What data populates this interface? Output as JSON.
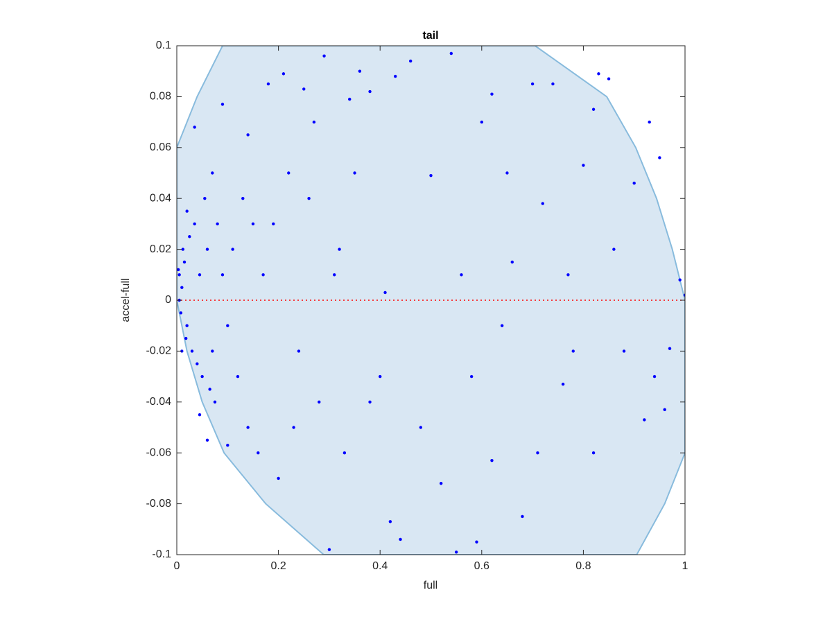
{
  "chart_data": {
    "type": "scatter",
    "title": "tail",
    "xlabel": "full",
    "ylabel": "accel-full",
    "color": "#0000ff",
    "x": [
      0.005,
      0.01,
      0.008,
      0.015,
      0.02,
      0.005,
      0.012,
      0.018,
      0.025,
      0.03,
      0.035,
      0.04,
      0.045,
      0.05,
      0.055,
      0.06,
      0.065,
      0.07,
      0.075,
      0.08,
      0.09,
      0.1,
      0.11,
      0.12,
      0.13,
      0.14,
      0.15,
      0.16,
      0.17,
      0.18,
      0.2,
      0.21,
      0.22,
      0.24,
      0.25,
      0.27,
      0.29,
      0.3,
      0.32,
      0.34,
      0.36,
      0.38,
      0.4,
      0.42,
      0.43,
      0.46,
      0.5,
      0.54,
      0.55,
      0.58,
      0.6,
      0.62,
      0.65,
      0.68,
      0.7,
      0.74,
      0.76,
      0.8,
      0.82,
      0.83,
      0.85,
      0.86,
      0.9,
      0.92,
      0.93,
      0.95,
      0.97,
      0.99,
      1.0,
      0.96,
      0.94,
      0.88,
      0.82,
      0.78,
      0.72,
      0.66,
      0.62,
      0.56,
      0.52,
      0.48,
      0.44,
      0.41,
      0.38,
      0.35,
      0.33,
      0.31,
      0.28,
      0.26,
      0.23,
      0.19,
      0.14,
      0.09,
      0.035,
      0.06,
      0.1,
      0.02,
      0.01,
      0.003,
      0.045,
      0.07,
      0.59,
      0.71,
      0.77,
      0.64
    ],
    "values": [
      0.01,
      0.005,
      -0.005,
      0.015,
      -0.01,
      0.0,
      0.02,
      -0.015,
      0.025,
      -0.02,
      0.03,
      -0.025,
      0.01,
      -0.03,
      0.04,
      0.02,
      -0.035,
      0.05,
      -0.04,
      0.03,
      0.01,
      -0.01,
      0.02,
      -0.03,
      0.04,
      -0.05,
      0.03,
      -0.06,
      0.01,
      0.085,
      -0.07,
      0.089,
      0.05,
      -0.02,
      0.083,
      0.07,
      0.096,
      -0.098,
      0.02,
      0.079,
      0.09,
      0.082,
      -0.03,
      -0.087,
      0.088,
      0.094,
      0.049,
      0.097,
      -0.099,
      -0.03,
      0.07,
      0.081,
      0.05,
      -0.085,
      0.085,
      0.085,
      -0.033,
      0.053,
      0.075,
      0.089,
      0.087,
      0.02,
      0.046,
      -0.047,
      0.07,
      0.056,
      -0.019,
      0.008,
      0.002,
      -0.043,
      -0.03,
      -0.02,
      -0.06,
      -0.02,
      0.038,
      0.015,
      -0.063,
      0.01,
      -0.072,
      -0.05,
      -0.094,
      0.003,
      -0.04,
      0.05,
      -0.06,
      0.01,
      -0.04,
      0.04,
      -0.05,
      0.03,
      0.065,
      0.077,
      0.068,
      -0.055,
      -0.057,
      0.035,
      -0.02,
      0.012,
      -0.045,
      -0.02,
      -0.095,
      -0.06,
      0.01,
      -0.01
    ],
    "region": {
      "color": "#d9e7f3",
      "edge_color": "#88bbdd",
      "x": [
        0.09,
        0.04,
        0,
        0,
        0.02,
        0.05,
        0.093,
        0.175,
        0.289,
        0.905,
        0.96,
        1,
        1,
        0.975,
        0.944,
        0.903,
        0.846,
        0.705
      ],
      "y": [
        0.1,
        0.08,
        0.06,
        0,
        -0.02,
        -0.04,
        -0.06,
        -0.08,
        -0.1,
        -0.1,
        -0.08,
        -0.06,
        0,
        0.02,
        0.04,
        0.06,
        0.08,
        0.1
      ]
    },
    "hline": {
      "y": 0,
      "color": "#ff0000"
    },
    "xlim": [
      0,
      1
    ],
    "xticks": [
      0,
      0.2,
      0.4,
      0.6,
      0.8,
      1
    ],
    "ylim": [
      -0.1,
      0.1
    ],
    "yticks": [
      -0.1,
      -0.08,
      -0.06,
      -0.04,
      -0.02,
      0,
      0.02,
      0.04,
      0.06,
      0.08,
      0.1
    ]
  }
}
